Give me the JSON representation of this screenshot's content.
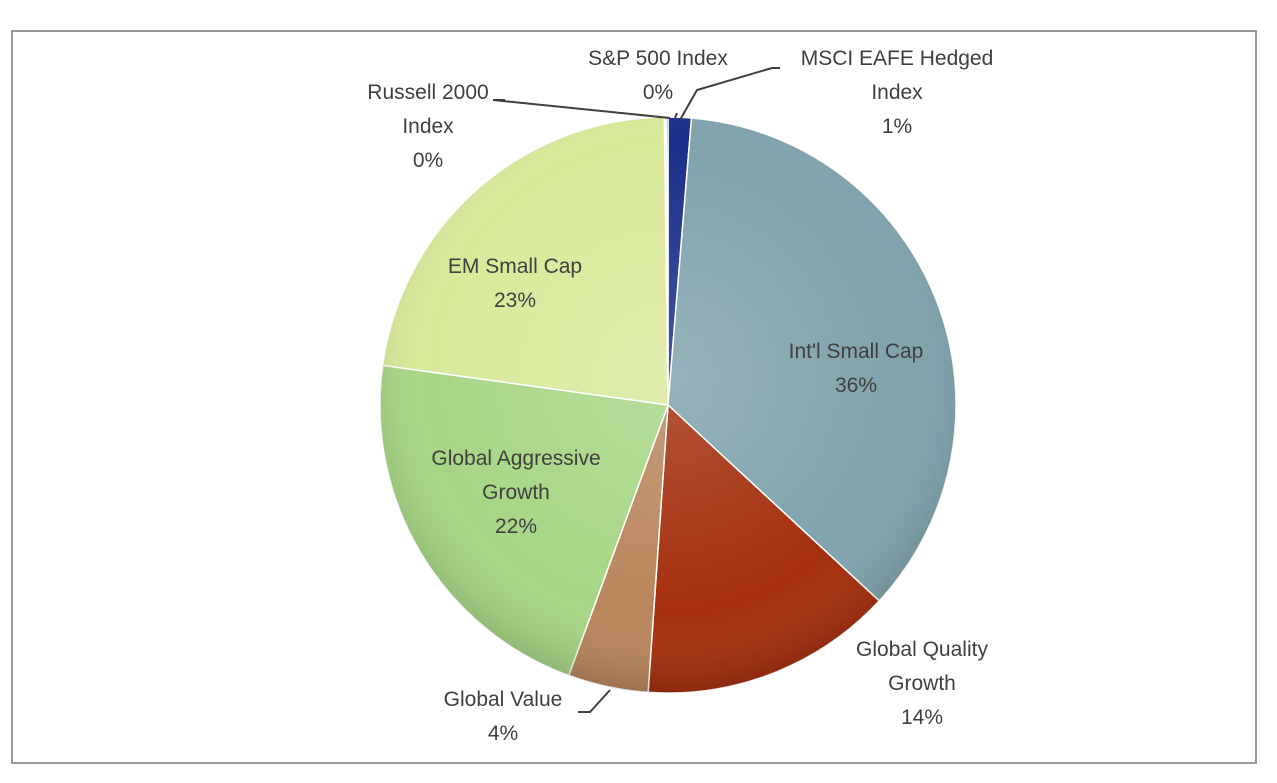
{
  "chart_data": {
    "type": "pie",
    "slices": [
      {
        "label": "MSCI EAFE Hedged Index",
        "pct_label": "1%",
        "value": 1.3,
        "color": "#1a2f8a"
      },
      {
        "label": "Int'l Small Cap",
        "pct_label": "36%",
        "value": 35.6,
        "color": "#7fa2ac"
      },
      {
        "label": "Global Quality Growth",
        "pct_label": "14%",
        "value": 14.2,
        "color": "#a52f0e"
      },
      {
        "label": "Global Value",
        "pct_label": "4%",
        "value": 4.5,
        "color": "#b9875c"
      },
      {
        "label": "Global Aggressive Growth",
        "pct_label": "22%",
        "value": 21.6,
        "color": "#a6d684"
      },
      {
        "label": "EM Small Cap",
        "pct_label": "23%",
        "value": 22.6,
        "color": "#d8ea9a"
      },
      {
        "label": "Russell 2000 Index",
        "pct_label": "0%",
        "value": 0.1,
        "color": "#d8ea9a"
      },
      {
        "label": "S&P 500 Index",
        "pct_label": "0%",
        "value": 0.1,
        "color": "#1a2f8a"
      }
    ]
  }
}
